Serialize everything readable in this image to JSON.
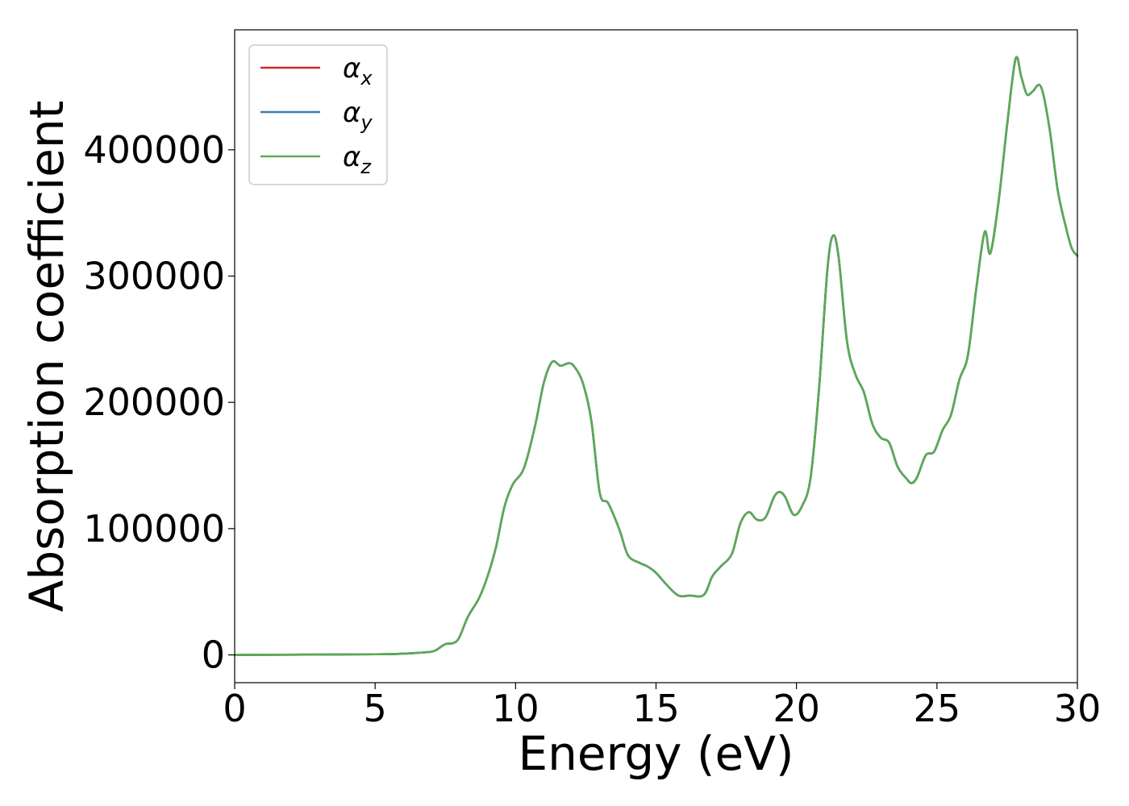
{
  "chart_data": {
    "type": "line",
    "title": "",
    "xlabel": "Energy (eV)",
    "ylabel": "Absorption coefficient",
    "xlim": [
      0,
      30
    ],
    "ylim": [
      -22000,
      495000
    ],
    "grid": false,
    "legend_position": "top-left",
    "x_ticks": [
      0,
      5,
      10,
      15,
      20,
      25,
      30
    ],
    "x_tick_labels": [
      "0",
      "5",
      "10",
      "15",
      "20",
      "25",
      "30"
    ],
    "y_ticks": [
      0,
      100000,
      200000,
      300000,
      400000
    ],
    "y_tick_labels": [
      "0",
      "100000",
      "200000",
      "300000",
      "400000"
    ],
    "x": [
      0,
      5,
      6,
      6.5,
      7,
      7.2,
      7.5,
      7.8,
      8,
      8.3,
      8.7,
      9,
      9.3,
      9.6,
      9.9,
      10.3,
      10.7,
      11,
      11.3,
      11.6,
      11.9,
      12.1,
      12.4,
      12.7,
      13,
      13.3,
      13.7,
      14,
      14.4,
      14.7,
      15,
      15.4,
      15.8,
      16.2,
      16.7,
      17,
      17.3,
      17.7,
      18,
      18.3,
      18.6,
      18.9,
      19.2,
      19.4,
      19.6,
      19.9,
      20.2,
      20.5,
      20.8,
      21.1,
      21.3,
      21.5,
      21.8,
      22.1,
      22.4,
      22.7,
      23,
      23.3,
      23.6,
      23.9,
      24.1,
      24.3,
      24.6,
      24.9,
      25.2,
      25.5,
      25.8,
      26.1,
      26.4,
      26.7,
      26.9,
      27.2,
      27.5,
      27.8,
      28,
      28.2,
      28.4,
      28.7,
      29,
      29.3,
      29.6,
      29.8,
      30
    ],
    "series": [
      {
        "name": "αx",
        "name_base": "α",
        "name_sub": "x",
        "color": "#d62728",
        "values": [
          0,
          500,
          1000,
          1600,
          2500,
          4200,
          8500,
          9500,
          14000,
          30000,
          45000,
          62000,
          85000,
          117000,
          135000,
          148000,
          182000,
          215000,
          232000,
          229000,
          231000,
          228000,
          215000,
          185000,
          128000,
          120000,
          99000,
          79000,
          73000,
          70000,
          65000,
          55000,
          47000,
          47000,
          47500,
          62000,
          70000,
          80000,
          104000,
          113000,
          107000,
          109000,
          125000,
          129000,
          125000,
          111000,
          118000,
          140000,
          210000,
          305000,
          332000,
          315000,
          248000,
          222000,
          208000,
          183000,
          172000,
          168000,
          149000,
          140000,
          136000,
          141000,
          158000,
          161000,
          178000,
          190000,
          218000,
          237000,
          290000,
          335000,
          318000,
          360000,
          420000,
          472000,
          458000,
          444000,
          446000,
          450000,
          418000,
          368000,
          338000,
          322000,
          316000
        ]
      },
      {
        "name": "αy",
        "name_base": "α",
        "name_sub": "y",
        "color": "#377eb8",
        "values": [
          0,
          500,
          1000,
          1600,
          2500,
          4200,
          8500,
          9500,
          14000,
          30000,
          45000,
          62000,
          85000,
          117000,
          135000,
          148000,
          182000,
          215000,
          232000,
          229000,
          231000,
          228000,
          215000,
          185000,
          128000,
          120000,
          99000,
          79000,
          73000,
          70000,
          65000,
          55000,
          47000,
          47000,
          47500,
          62000,
          70000,
          80000,
          104000,
          113000,
          107000,
          109000,
          125000,
          129000,
          125000,
          111000,
          118000,
          140000,
          210000,
          305000,
          332000,
          315000,
          248000,
          222000,
          208000,
          183000,
          172000,
          168000,
          149000,
          140000,
          136000,
          141000,
          158000,
          161000,
          178000,
          190000,
          218000,
          237000,
          290000,
          335000,
          318000,
          360000,
          420000,
          472000,
          458000,
          444000,
          446000,
          450000,
          418000,
          368000,
          338000,
          322000,
          316000
        ]
      },
      {
        "name": "αz",
        "name_base": "α",
        "name_sub": "z",
        "color": "#5aaa55",
        "values": [
          0,
          500,
          1000,
          1600,
          2500,
          4200,
          8500,
          9500,
          14000,
          30000,
          45000,
          62000,
          85000,
          117000,
          135000,
          148000,
          182000,
          215000,
          232000,
          229000,
          231000,
          228000,
          215000,
          185000,
          128000,
          120000,
          99000,
          79000,
          73000,
          70000,
          65000,
          55000,
          47000,
          47000,
          47500,
          62000,
          70000,
          80000,
          104000,
          113000,
          107000,
          109000,
          125000,
          129000,
          125000,
          111000,
          118000,
          140000,
          210000,
          305000,
          332000,
          315000,
          248000,
          222000,
          208000,
          183000,
          172000,
          168000,
          149000,
          140000,
          136000,
          141000,
          158000,
          161000,
          178000,
          190000,
          218000,
          237000,
          290000,
          335000,
          318000,
          360000,
          420000,
          472000,
          458000,
          444000,
          446000,
          450000,
          418000,
          368000,
          338000,
          322000,
          316000
        ]
      }
    ]
  }
}
